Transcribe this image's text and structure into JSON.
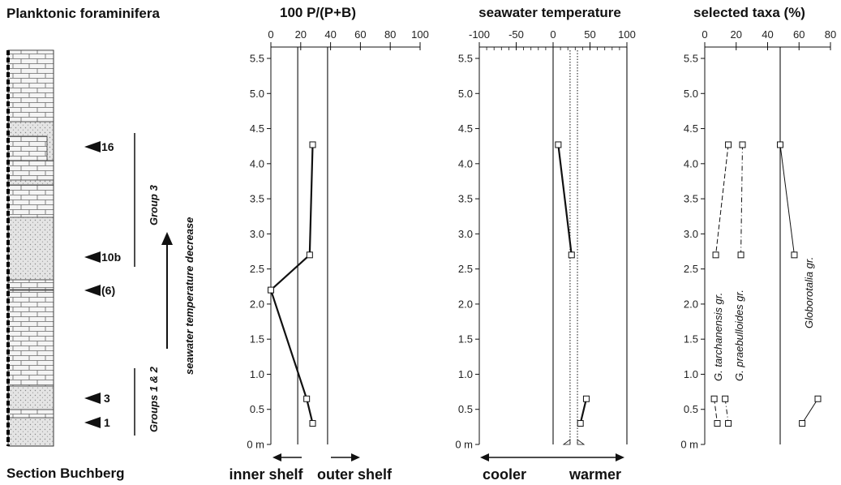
{
  "titles": {
    "main": "Planktonic foraminifera",
    "section": "Section Buchberg",
    "group3": "Group 3",
    "group12": "Groups 1 & 2",
    "trend": "seawater temperature  decrease"
  },
  "samples": [
    "16",
    "10b",
    "(6)",
    "3",
    "1"
  ],
  "y_unit": "m",
  "colors": {
    "ink": "#111111",
    "rock": "#d9d9d9"
  },
  "panels": {
    "pb": {
      "title": "100 P/(P+B)",
      "left_label": "inner shelf",
      "right_label": "outer shelf"
    },
    "temp": {
      "title": "seawater temperature",
      "left_label": "cooler",
      "right_label": "warmer"
    },
    "taxa": {
      "title": "selected taxa (%)",
      "series_labels": [
        "G. tarchanensis gr.",
        "G. praebulloides gr.",
        "Globorotalia gr."
      ]
    }
  },
  "chart_data": [
    {
      "type": "line",
      "title": "100 P/(P+B)",
      "xlim": [
        0,
        100
      ],
      "x_ticks": [
        0,
        20,
        40,
        60,
        80,
        100
      ],
      "ylim": [
        0,
        5.5
      ],
      "y_ticks": [
        "0 m",
        "0.5",
        "1.0",
        "1.5",
        "2.0",
        "2.5",
        "3.0",
        "3.5",
        "4.0",
        "4.5",
        "5.0",
        "5.5"
      ],
      "reference_lines_x": [
        18,
        38
      ],
      "series": [
        {
          "x": [
            28,
            26,
            0,
            24,
            28
          ],
          "y": [
            4.27,
            2.7,
            2.2,
            0.65,
            0.3
          ]
        }
      ]
    },
    {
      "type": "line",
      "title": "seawater temperature",
      "xlim": [
        -100,
        100
      ],
      "x_ticks": [
        -100,
        -50,
        0,
        50,
        100
      ],
      "ylim": [
        0,
        5.5
      ],
      "y_ticks": [
        "0 m",
        "0.5",
        "1.0",
        "1.5",
        "2.0",
        "2.5",
        "3.0",
        "3.5",
        "4.0",
        "4.5",
        "5.0",
        "5.5"
      ],
      "reference_lines_x": [
        0,
        100
      ],
      "dotted_lines_x": [
        23,
        33
      ],
      "series": [
        {
          "x": [
            7,
            25
          ],
          "y": [
            4.27,
            2.7
          ]
        },
        {
          "x": [
            45,
            37
          ],
          "y": [
            0.65,
            0.3
          ]
        }
      ]
    },
    {
      "type": "line",
      "title": "selected taxa (%)",
      "xlim": [
        0,
        80
      ],
      "x_ticks": [
        0,
        20,
        40,
        60,
        80
      ],
      "ylim": [
        0,
        5.5
      ],
      "y_ticks": [
        "0 m",
        "0.5",
        "1.0",
        "1.5",
        "2.0",
        "2.5",
        "3.0",
        "3.5",
        "4.0",
        "4.5",
        "5.0",
        "5.5"
      ],
      "reference_lines_x": [
        48
      ],
      "series": [
        {
          "name": "G. tarchanensis gr.",
          "style": "dashed",
          "x": [
            15,
            7
          ],
          "y": [
            4.27,
            2.7
          ],
          "x_lower": [
            6,
            8
          ],
          "y_lower": [
            0.65,
            0.3
          ]
        },
        {
          "name": "G. praebulloides gr.",
          "style": "dashdot",
          "x": [
            24,
            23
          ],
          "y": [
            4.27,
            2.7
          ],
          "x_lower": [
            13,
            15
          ],
          "y_lower": [
            0.65,
            0.3
          ]
        },
        {
          "name": "Globorotalia gr.",
          "style": "solid",
          "x": [
            48,
            57
          ],
          "y": [
            4.27,
            2.7
          ],
          "x_lower": [
            72,
            62
          ],
          "y_lower": [
            0.65,
            0.3
          ]
        }
      ]
    }
  ]
}
